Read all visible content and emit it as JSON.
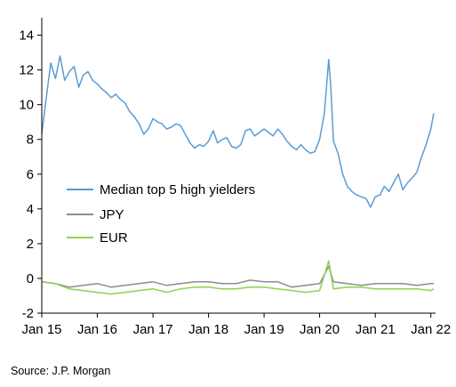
{
  "source": "Source: J.P. Morgan",
  "chart_data": {
    "type": "line",
    "title": "",
    "xlabel": "",
    "ylabel": "",
    "ylim": [
      -2,
      15
    ],
    "xlim": [
      "2015-01-01",
      "2022-02-01"
    ],
    "y_ticks": [
      14,
      12,
      10,
      8,
      6,
      4,
      2,
      0,
      -2
    ],
    "y_tick_labels": [
      "14",
      "12",
      "10",
      "8",
      "6",
      "4",
      "2",
      "0",
      "-2"
    ],
    "x_ticks": [
      "2015-01-01",
      "2016-01-01",
      "2017-01-01",
      "2018-01-01",
      "2019-01-01",
      "2020-01-01",
      "2021-01-01",
      "2022-01-01"
    ],
    "x_tick_labels": [
      "Jan 15",
      "Jan 16",
      "Jan 17",
      "Jan 18",
      "Jan 19",
      "Jan 20",
      "Jan 21",
      "Jan 22"
    ],
    "grid": false,
    "legend_position": "center-left",
    "series": [
      {
        "name": "Median top 5 high yielders",
        "color": "#5b9bd5",
        "x": [
          "2015-01-01",
          "2015-02-01",
          "2015-03-01",
          "2015-04-01",
          "2015-05-01",
          "2015-06-01",
          "2015-07-01",
          "2015-08-01",
          "2015-09-01",
          "2015-10-01",
          "2015-11-01",
          "2015-12-01",
          "2016-01-01",
          "2016-02-01",
          "2016-03-01",
          "2016-04-01",
          "2016-05-01",
          "2016-06-01",
          "2016-07-01",
          "2016-08-01",
          "2016-09-01",
          "2016-10-01",
          "2016-11-01",
          "2016-12-01",
          "2017-01-01",
          "2017-02-01",
          "2017-03-01",
          "2017-04-01",
          "2017-05-01",
          "2017-06-01",
          "2017-07-01",
          "2017-08-01",
          "2017-09-01",
          "2017-10-01",
          "2017-11-01",
          "2017-12-01",
          "2018-01-01",
          "2018-02-01",
          "2018-03-01",
          "2018-04-01",
          "2018-05-01",
          "2018-06-01",
          "2018-07-01",
          "2018-08-01",
          "2018-09-01",
          "2018-10-01",
          "2018-11-01",
          "2018-12-01",
          "2019-01-01",
          "2019-02-01",
          "2019-03-01",
          "2019-04-01",
          "2019-05-01",
          "2019-06-01",
          "2019-07-01",
          "2019-08-01",
          "2019-09-01",
          "2019-10-01",
          "2019-11-01",
          "2019-12-01",
          "2020-01-01",
          "2020-02-01",
          "2020-03-01",
          "2020-03-15",
          "2020-04-01",
          "2020-05-01",
          "2020-06-01",
          "2020-07-01",
          "2020-08-01",
          "2020-09-01",
          "2020-10-01",
          "2020-11-01",
          "2020-12-01",
          "2021-01-01",
          "2021-02-01",
          "2021-03-01",
          "2021-04-01",
          "2021-05-01",
          "2021-06-01",
          "2021-07-01",
          "2021-08-01",
          "2021-09-01",
          "2021-10-01",
          "2021-11-01",
          "2021-12-01",
          "2022-01-01",
          "2022-01-20"
        ],
        "y": [
          8.3,
          10.5,
          12.4,
          11.5,
          12.8,
          11.4,
          11.9,
          12.2,
          11.0,
          11.7,
          11.9,
          11.4,
          11.2,
          10.9,
          10.7,
          10.4,
          10.6,
          10.3,
          10.1,
          9.6,
          9.3,
          8.9,
          8.3,
          8.6,
          9.2,
          9.0,
          8.9,
          8.6,
          8.7,
          8.9,
          8.8,
          8.3,
          7.8,
          7.5,
          7.7,
          7.6,
          7.9,
          8.5,
          7.8,
          8.0,
          8.1,
          7.6,
          7.5,
          7.7,
          8.5,
          8.6,
          8.2,
          8.4,
          8.6,
          8.4,
          8.2,
          8.6,
          8.3,
          7.9,
          7.6,
          7.4,
          7.7,
          7.4,
          7.2,
          7.3,
          8.0,
          9.5,
          12.6,
          11.0,
          7.9,
          7.2,
          6.0,
          5.3,
          5.0,
          4.8,
          4.7,
          4.6,
          4.1,
          4.7,
          4.8,
          5.3,
          5.0,
          5.5,
          6.0,
          5.1,
          5.5,
          5.8,
          6.1,
          7.0,
          7.7,
          8.6,
          9.5
        ]
      },
      {
        "name": "JPY",
        "color": "#8c8c8c",
        "x": [
          "2015-01-01",
          "2015-04-01",
          "2015-07-01",
          "2015-10-01",
          "2016-01-01",
          "2016-04-01",
          "2016-07-01",
          "2016-10-01",
          "2017-01-01",
          "2017-04-01",
          "2017-07-01",
          "2017-10-01",
          "2018-01-01",
          "2018-04-01",
          "2018-07-01",
          "2018-10-01",
          "2019-01-01",
          "2019-04-01",
          "2019-07-01",
          "2019-10-01",
          "2020-01-01",
          "2020-03-01",
          "2020-04-01",
          "2020-07-01",
          "2020-10-01",
          "2021-01-01",
          "2021-04-01",
          "2021-07-01",
          "2021-10-01",
          "2022-01-01",
          "2022-01-20"
        ],
        "y": [
          -0.2,
          -0.3,
          -0.5,
          -0.4,
          -0.3,
          -0.5,
          -0.4,
          -0.3,
          -0.2,
          -0.4,
          -0.3,
          -0.2,
          -0.2,
          -0.3,
          -0.3,
          -0.1,
          -0.2,
          -0.2,
          -0.5,
          -0.4,
          -0.3,
          0.7,
          -0.2,
          -0.3,
          -0.4,
          -0.3,
          -0.3,
          -0.3,
          -0.4,
          -0.3,
          -0.3
        ]
      },
      {
        "name": "EUR",
        "color": "#8fd14f",
        "x": [
          "2015-01-01",
          "2015-04-01",
          "2015-07-01",
          "2015-10-01",
          "2016-01-01",
          "2016-04-01",
          "2016-07-01",
          "2016-10-01",
          "2017-01-01",
          "2017-04-01",
          "2017-07-01",
          "2017-10-01",
          "2018-01-01",
          "2018-04-01",
          "2018-07-01",
          "2018-10-01",
          "2019-01-01",
          "2019-04-01",
          "2019-07-01",
          "2019-10-01",
          "2020-01-01",
          "2020-03-01",
          "2020-04-01",
          "2020-07-01",
          "2020-10-01",
          "2021-01-01",
          "2021-04-01",
          "2021-07-01",
          "2021-10-01",
          "2022-01-01",
          "2022-01-20"
        ],
        "y": [
          -0.2,
          -0.3,
          -0.6,
          -0.7,
          -0.8,
          -0.9,
          -0.8,
          -0.7,
          -0.6,
          -0.8,
          -0.6,
          -0.5,
          -0.5,
          -0.6,
          -0.6,
          -0.5,
          -0.5,
          -0.6,
          -0.7,
          -0.8,
          -0.7,
          1.0,
          -0.6,
          -0.5,
          -0.5,
          -0.6,
          -0.6,
          -0.6,
          -0.6,
          -0.7,
          -0.6
        ]
      }
    ]
  }
}
